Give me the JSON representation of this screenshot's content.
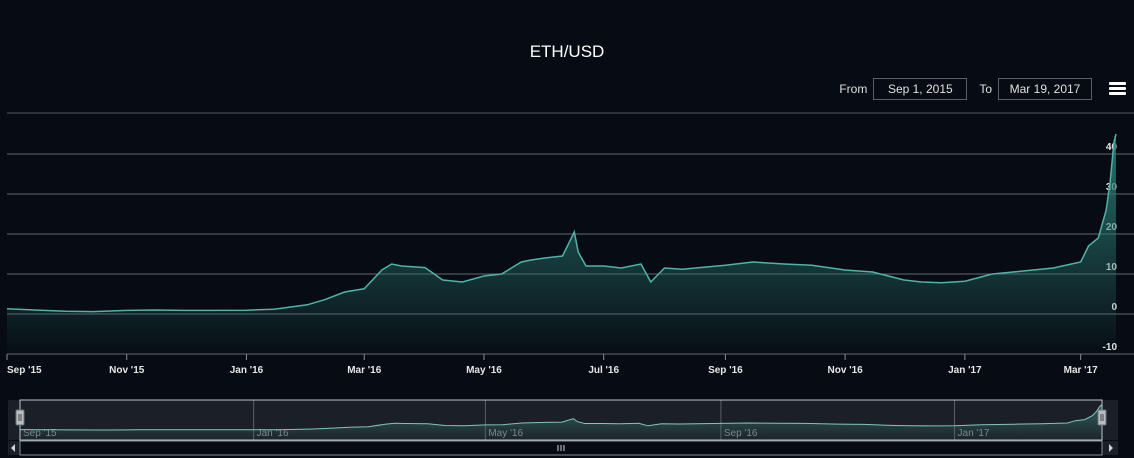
{
  "title": "ETH/USD",
  "range_selector": {
    "from_label": "From",
    "from_value": "Sep 1, 2015",
    "to_label": "To",
    "to_value": "Mar 19, 2017"
  },
  "menu_icon": "hamburger-menu-icon",
  "colors": {
    "background": "#070b13",
    "series_line": "#4fb3a8",
    "series_fill_top": "#2a7a73",
    "grid": "#8a8f96"
  },
  "chart_data": {
    "type": "area",
    "title": "ETH/USD",
    "xlabel": "",
    "ylabel": "",
    "ylim": [
      -10,
      50
    ],
    "yticks": [
      -10,
      0,
      10,
      20,
      30,
      40
    ],
    "xticks": [
      "Sep '15",
      "Nov '15",
      "Jan '16",
      "Mar '16",
      "May '16",
      "Jul '16",
      "Sep '16",
      "Nov '16",
      "Jan '17",
      "Mar '17"
    ],
    "grid": true,
    "legend": "none",
    "series": [
      {
        "x": [
          "2015-09-01",
          "2015-09-15",
          "2015-10-01",
          "2015-10-15",
          "2015-11-01",
          "2015-11-15",
          "2015-12-01",
          "2015-12-15",
          "2016-01-01",
          "2016-01-15",
          "2016-02-01",
          "2016-02-10",
          "2016-02-20",
          "2016-03-01",
          "2016-03-10",
          "2016-03-15",
          "2016-03-20",
          "2016-04-01",
          "2016-04-10",
          "2016-04-20",
          "2016-05-01",
          "2016-05-10",
          "2016-05-20",
          "2016-05-25",
          "2016-06-01",
          "2016-06-10",
          "2016-06-16",
          "2016-06-18",
          "2016-06-22",
          "2016-07-01",
          "2016-07-10",
          "2016-07-20",
          "2016-07-25",
          "2016-08-01",
          "2016-08-10",
          "2016-09-01",
          "2016-09-15",
          "2016-10-01",
          "2016-10-15",
          "2016-11-01",
          "2016-11-15",
          "2016-12-01",
          "2016-12-10",
          "2016-12-20",
          "2017-01-01",
          "2017-01-15",
          "2017-02-01",
          "2017-02-15",
          "2017-03-01",
          "2017-03-05",
          "2017-03-10",
          "2017-03-14",
          "2017-03-16",
          "2017-03-18",
          "2017-03-19"
        ],
        "y": [
          1.3,
          1.0,
          0.7,
          0.6,
          0.9,
          1.0,
          0.9,
          0.9,
          0.95,
          1.2,
          2.3,
          3.6,
          5.5,
          6.3,
          11,
          12.5,
          12,
          11.6,
          8.5,
          8,
          9.5,
          10,
          13,
          13.5,
          14,
          14.5,
          20.5,
          15.5,
          12,
          12,
          11.5,
          12.5,
          8,
          11.5,
          11.2,
          12.2,
          13,
          12.5,
          12.2,
          11,
          10.5,
          8.5,
          8,
          7.8,
          8.2,
          10,
          10.8,
          11.5,
          13,
          17,
          19,
          26,
          33,
          43,
          45
        ]
      }
    ]
  }
}
